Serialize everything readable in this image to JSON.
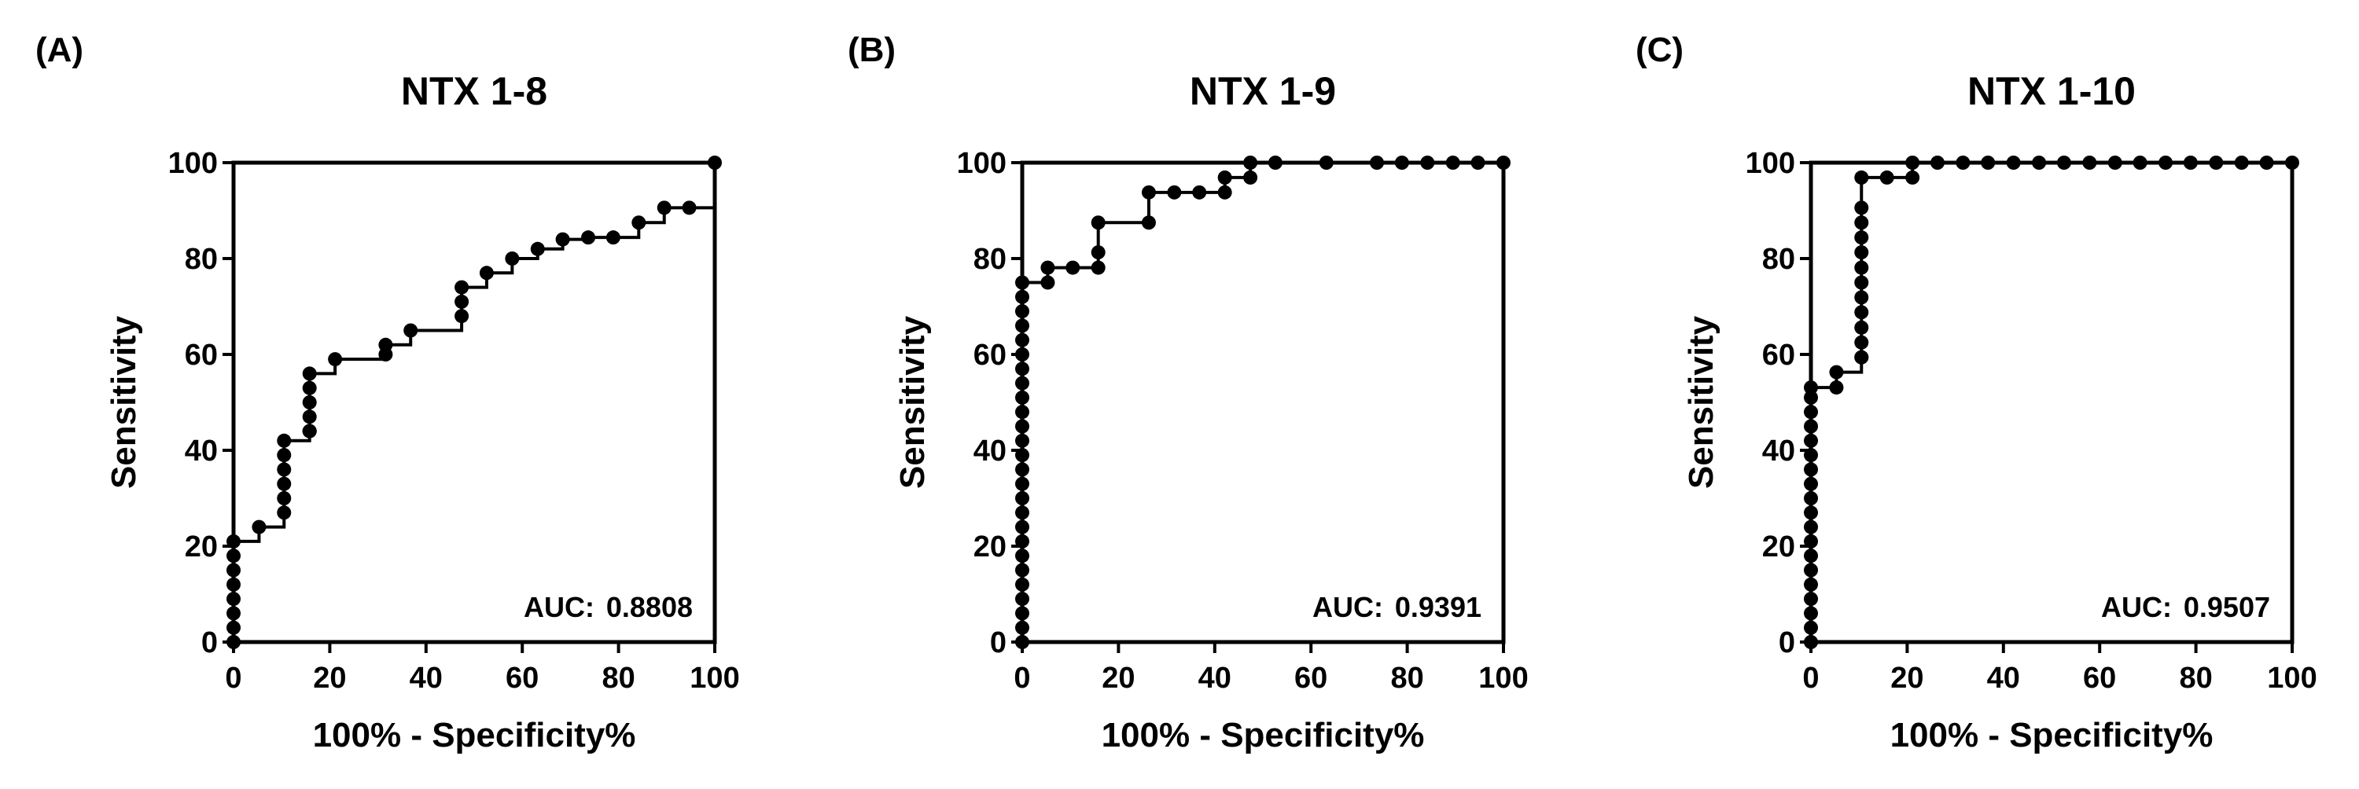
{
  "chart_data": [
    {
      "type": "line",
      "panel_label": "(A)",
      "title": "NTX 1-8",
      "xlabel": "100% - Specificity%",
      "ylabel": "Sensitivity",
      "xlim": [
        0,
        100
      ],
      "ylim": [
        0,
        100
      ],
      "xticks": [
        "0",
        "20",
        "40",
        "60",
        "80",
        "100"
      ],
      "yticks": [
        "0",
        "20",
        "40",
        "60",
        "80",
        "100"
      ],
      "grid": false,
      "legend": "none",
      "line_color": "#000000",
      "marker": "circle",
      "auc_label": "AUC:",
      "auc_value": "0.8808",
      "series": [
        {
          "x": [
            0,
            0,
            0,
            0,
            0,
            0,
            0,
            0,
            5.3,
            10.5,
            10.5,
            10.5,
            10.5,
            10.5,
            10.5,
            15.8,
            15.8,
            15.8,
            15.8,
            15.8,
            15.8,
            15.8,
            21.1,
            31.6,
            31.6,
            36.8,
            47.4,
            47.4,
            47.4,
            52.6,
            57.9,
            63.2,
            68.4,
            73.7,
            78.9,
            84.2,
            89.5,
            94.7,
            100
          ],
          "y": [
            0,
            3,
            6,
            9,
            12,
            15,
            18,
            21,
            24,
            27,
            30,
            33,
            36,
            39,
            42,
            44,
            44,
            44,
            47,
            50,
            53,
            56,
            59,
            60,
            62,
            65,
            68,
            71,
            74,
            77,
            80,
            82,
            84,
            84.4,
            84.4,
            87.5,
            90.6,
            90.6,
            100
          ]
        }
      ]
    },
    {
      "type": "line",
      "panel_label": "(B)",
      "title": "NTX 1-9",
      "xlabel": "100% - Specificity%",
      "ylabel": "Sensitivity",
      "xlim": [
        0,
        100
      ],
      "ylim": [
        0,
        100
      ],
      "xticks": [
        "0",
        "20",
        "40",
        "60",
        "80",
        "100"
      ],
      "yticks": [
        "0",
        "20",
        "40",
        "60",
        "80",
        "100"
      ],
      "grid": false,
      "legend": "none",
      "line_color": "#000000",
      "marker": "circle",
      "auc_label": "AUC:",
      "auc_value": "0.9391",
      "series": [
        {
          "x": [
            0,
            0,
            0,
            0,
            0,
            0,
            0,
            0,
            0,
            0,
            0,
            0,
            0,
            0,
            0,
            0,
            0,
            0,
            0,
            0,
            0,
            0,
            0,
            0,
            0,
            0,
            5.3,
            5.3,
            10.5,
            15.8,
            15.8,
            15.8,
            26.3,
            26.3,
            31.6,
            36.8,
            42.1,
            42.1,
            47.4,
            47.4,
            52.6,
            63.2,
            73.7,
            78.9,
            84.2,
            89.5,
            94.7,
            100
          ],
          "y": [
            0,
            3,
            6,
            9,
            12,
            15,
            18,
            21,
            24,
            27,
            30,
            33,
            36,
            39,
            42,
            45,
            48,
            51,
            54,
            57,
            60,
            63,
            66,
            69,
            72,
            75,
            75,
            78.1,
            78.1,
            78.1,
            81.3,
            87.5,
            87.5,
            93.8,
            93.8,
            93.8,
            93.8,
            96.9,
            96.9,
            100,
            100,
            100,
            100,
            100,
            100,
            100,
            100,
            100
          ]
        }
      ]
    },
    {
      "type": "line",
      "panel_label": "(C)",
      "title": "NTX 1-10",
      "xlabel": "100% - Specificity%",
      "ylabel": "Sensitivity",
      "xlim": [
        0,
        100
      ],
      "ylim": [
        0,
        100
      ],
      "xticks": [
        "0",
        "20",
        "40",
        "60",
        "80",
        "100"
      ],
      "yticks": [
        "0",
        "20",
        "40",
        "60",
        "80",
        "100"
      ],
      "grid": false,
      "legend": "none",
      "line_color": "#000000",
      "marker": "circle",
      "auc_label": "AUC:",
      "auc_value": "0.9507",
      "series": [
        {
          "x": [
            0,
            0,
            0,
            0,
            0,
            0,
            0,
            0,
            0,
            0,
            0,
            0,
            0,
            0,
            0,
            0,
            0,
            0,
            0,
            5.3,
            5.3,
            10.5,
            10.5,
            10.5,
            10.5,
            10.5,
            10.5,
            10.5,
            10.5,
            10.5,
            10.5,
            10.5,
            10.5,
            10.5,
            15.8,
            21.1,
            21.1,
            26.3,
            31.6,
            36.8,
            42.1,
            47.4,
            52.6,
            57.9,
            63.2,
            68.4,
            73.7,
            78.9,
            84.2,
            89.5,
            94.7,
            100
          ],
          "y": [
            0,
            3,
            6,
            9,
            12,
            15,
            18,
            21,
            24,
            27,
            30,
            33,
            36,
            39,
            42,
            45,
            48,
            51,
            53.1,
            53.1,
            56.3,
            59.4,
            59.4,
            62.5,
            65.6,
            68.8,
            71.9,
            75,
            78.1,
            81.3,
            84.4,
            87.5,
            90.6,
            96.9,
            96.9,
            96.9,
            100,
            100,
            100,
            100,
            100,
            100,
            100,
            100,
            100,
            100,
            100,
            100,
            100,
            100,
            100,
            100
          ]
        }
      ]
    }
  ]
}
